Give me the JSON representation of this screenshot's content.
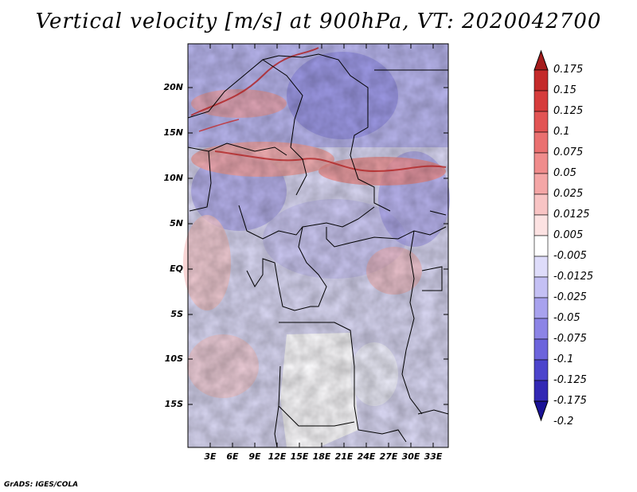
{
  "title": "Vertical velocity [m/s] at 900hPa, VT: 2020042700",
  "lat_labels": [
    "20N",
    "15N",
    "10N",
    "5N",
    "EQ",
    "5S",
    "10S",
    "15S"
  ],
  "lon_labels": [
    "3E",
    "6E",
    "9E",
    "12E",
    "15E",
    "18E",
    "21E",
    "24E",
    "27E",
    "30E",
    "33E"
  ],
  "colorbar": {
    "levels": [
      "0.175",
      "0.15",
      "0.125",
      "0.1",
      "0.075",
      "0.05",
      "0.025",
      "0.0125",
      "0.005",
      "-0.005",
      "-0.0125",
      "-0.025",
      "-0.05",
      "-0.075",
      "-0.1",
      "-0.125",
      "-0.175",
      "-0.2"
    ],
    "colors": [
      "#a51c1c",
      "#c42a2a",
      "#d63c3c",
      "#e25454",
      "#ea7070",
      "#f08c8c",
      "#f4a6a6",
      "#f8c4c4",
      "#fce2e2",
      "#ffffff",
      "#dedcfa",
      "#c4c0f4",
      "#a8a2ee",
      "#8c84e6",
      "#6c64dc",
      "#4c44cc",
      "#3228b4",
      "#1a1296"
    ]
  },
  "footer": "GrADS: IGES/COLA"
}
